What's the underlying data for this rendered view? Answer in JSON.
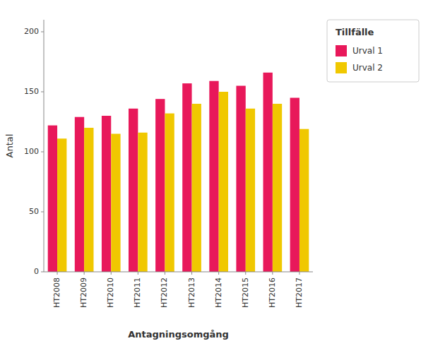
{
  "chart_data": {
    "type": "bar",
    "categories": [
      "HT2008",
      "HT2009",
      "HT2010",
      "HT2011",
      "HT2012",
      "HT2013",
      "HT2014",
      "HT2015",
      "HT2016",
      "HT2017"
    ],
    "series": [
      {
        "name": "Urval 1",
        "color": "#E8185A",
        "values": [
          122,
          129,
          130,
          136,
          144,
          157,
          159,
          155,
          166,
          145
        ]
      },
      {
        "name": "Urval 2",
        "color": "#F0C800",
        "values": [
          111,
          120,
          115,
          116,
          132,
          140,
          150,
          136,
          140,
          119
        ]
      }
    ],
    "xlabel": "Antagningsomgång",
    "ylabel": "Antal",
    "legend_title": "Tillfälle",
    "legend": "right",
    "ylim": [
      0,
      210
    ],
    "yticks": [
      0,
      50,
      100,
      150,
      200
    ],
    "grid": false
  }
}
